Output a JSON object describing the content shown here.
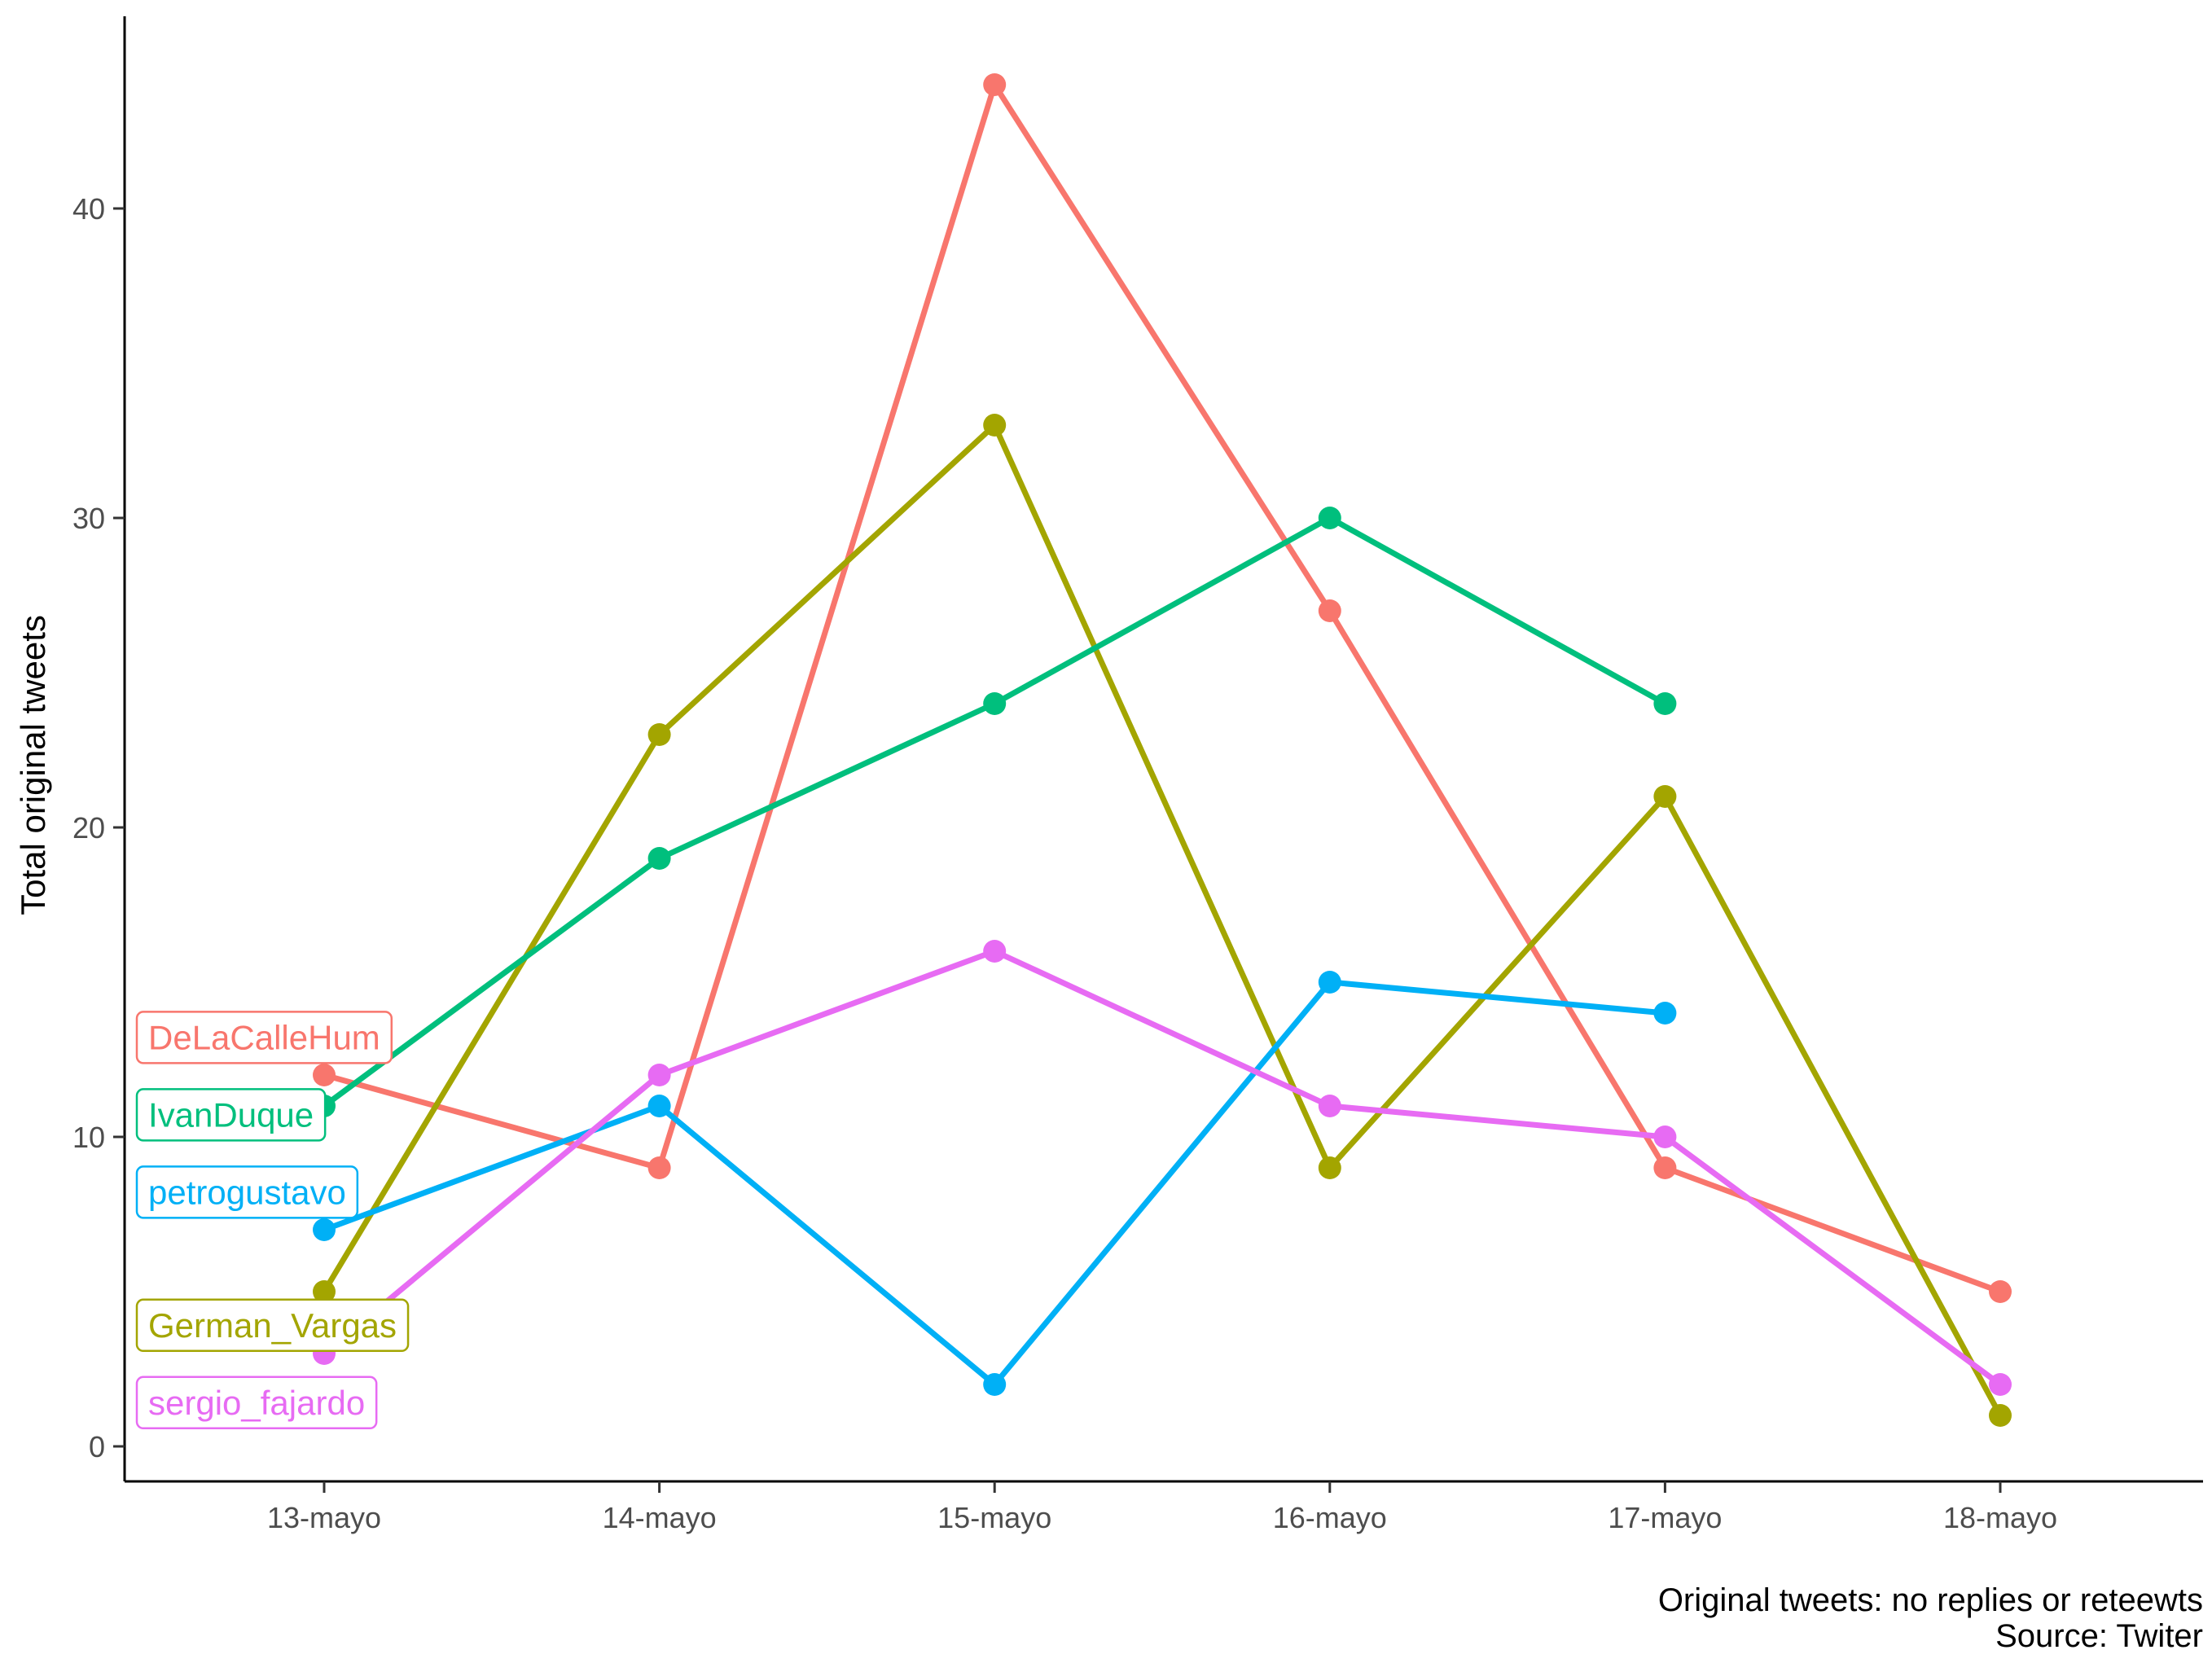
{
  "chart_data": {
    "type": "line",
    "title": "",
    "xlabel": "",
    "ylabel": "Total original tweets",
    "categories": [
      "13-mayo",
      "14-mayo",
      "15-mayo",
      "16-mayo",
      "17-mayo",
      "18-mayo"
    ],
    "yticks": [
      "0",
      "10",
      "20",
      "30",
      "40"
    ],
    "ylim": [
      -1,
      46
    ],
    "grid": false,
    "legend": "none (direct labels at left)",
    "caption": [
      "Original tweets: no replies or reteewts",
      "Source: Twiter"
    ],
    "series": [
      {
        "name": "DeLaCalleHum",
        "color": "#F8766D",
        "values": [
          12,
          9,
          44,
          27,
          9,
          5
        ]
      },
      {
        "name": "German_Vargas",
        "color": "#A3A500",
        "values": [
          5,
          23,
          33,
          9,
          21,
          1
        ]
      },
      {
        "name": "IvanDuque",
        "color": "#00BF7D",
        "values": [
          11,
          19,
          24,
          30,
          24,
          null
        ]
      },
      {
        "name": "petrogustavo",
        "color": "#00B0F6",
        "values": [
          7,
          11,
          2,
          15,
          14,
          null
        ]
      },
      {
        "name": "sergio_fajardo",
        "color": "#E76BF3",
        "values": [
          3,
          12,
          16,
          11,
          10,
          2
        ]
      }
    ],
    "label_order": [
      "DeLaCalleHum",
      "IvanDuque",
      "petrogustavo",
      "German_Vargas",
      "sergio_fajardo"
    ],
    "label_values": [
      13.2,
      10.7,
      8.2,
      3.9,
      1.4
    ]
  }
}
